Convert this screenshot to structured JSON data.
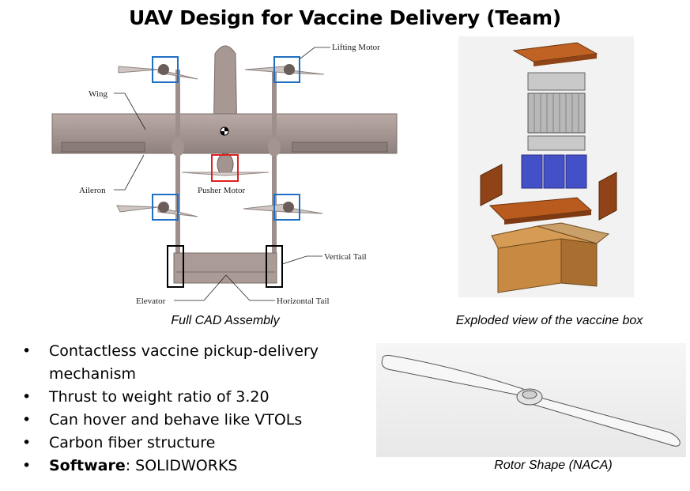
{
  "title": "UAV Design for Vaccine Delivery (Team)",
  "cad": {
    "caption": "Full CAD Assembly",
    "labels": {
      "lifting_motor": "Lifting Motor",
      "wing": "Wing",
      "aileron": "Aileron",
      "pusher_motor": "Pusher Motor",
      "vertical_tail": "Vertical Tail",
      "elevator": "Elevator",
      "horizontal_tail": "Horizontal Tail"
    }
  },
  "box": {
    "caption": "Exploded view of the vaccine box"
  },
  "rotor": {
    "caption": "Rotor Shape (NACA)"
  },
  "bullets": [
    {
      "bullet": "•",
      "text": "Contactless vaccine pickup-delivery mechanism"
    },
    {
      "bullet": "•",
      "text": "Thrust to weight ratio of 3.20"
    },
    {
      "bullet": "•",
      "text": "Can hover and behave like VTOLs"
    },
    {
      "bullet": "•",
      "text": "Carbon fiber structure"
    },
    {
      "bullet": "•",
      "bold": "Software",
      "text": ": SOLIDWORKS"
    }
  ],
  "colors": {
    "motor_box": "#1f6fc2",
    "pusher_box": "#e02020",
    "box_wood": "#b85a1c",
    "holder_blue": "#4450c8"
  }
}
